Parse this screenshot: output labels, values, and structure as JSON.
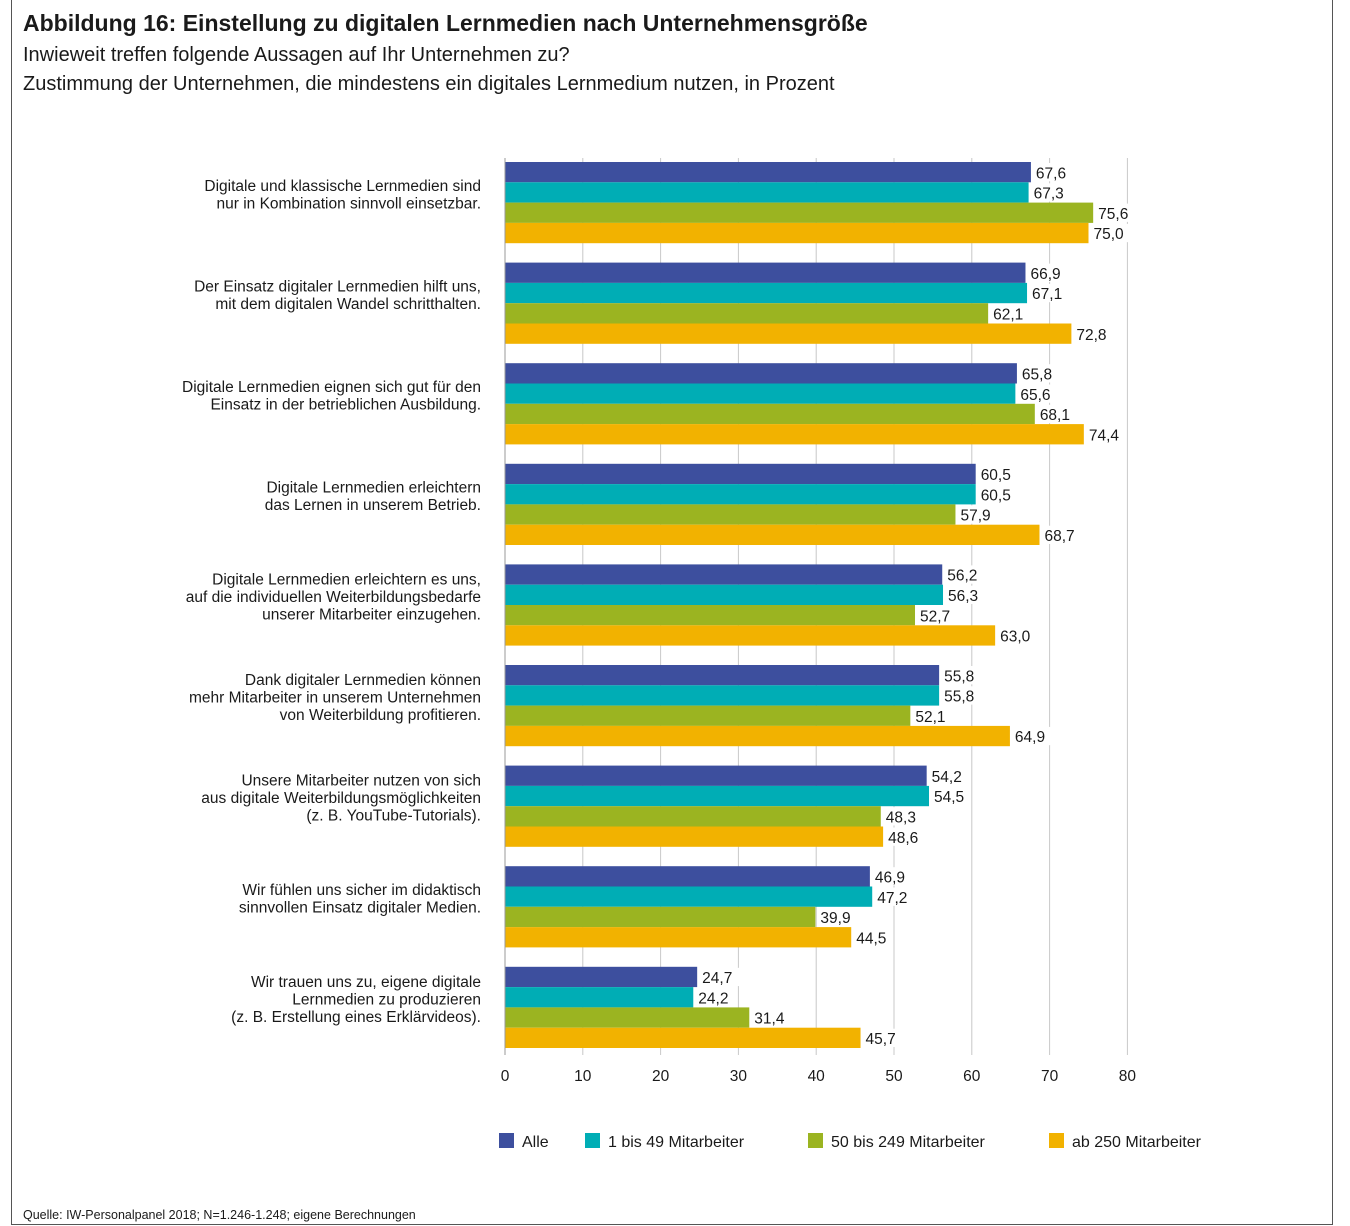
{
  "figure": {
    "title": "Abbildung 16: Einstellung zu digitalen Lernmedien nach Unternehmensgröße",
    "subtitle_1": "Inwieweit treffen folgende Aussagen auf Ihr Unternehmen zu?",
    "subtitle_2": "Zustimmung der Unternehmen, die mindestens ein digitales Lernmedium nutzen, in Prozent",
    "source": "Quelle: IW-Personalpanel 2018; N=1.246-1.248; eigene Berechnungen"
  },
  "chart_data": {
    "type": "bar",
    "orientation": "horizontal",
    "title": "Abbildung 16: Einstellung zu digitalen Lernmedien nach Unternehmensgröße",
    "xlim": [
      0,
      80
    ],
    "xticks": [
      0,
      10,
      20,
      30,
      40,
      50,
      60,
      70,
      80
    ],
    "grid": true,
    "legend": "bottom",
    "categories": [
      [
        "Digitale und klassische Lernmedien sind",
        "nur in Kombination sinnvoll einsetzbar."
      ],
      [
        "Der Einsatz digitaler Lernmedien hilft uns,",
        "mit dem digitalen Wandel schritthalten."
      ],
      [
        "Digitale Lernmedien eignen sich gut für den",
        "Einsatz in der betrieblichen Ausbildung."
      ],
      [
        "Digitale Lernmedien erleichtern",
        "das Lernen in unserem Betrieb."
      ],
      [
        "Digitale Lernmedien erleichtern es uns,",
        "auf die individuellen Weiterbildungsbedarfe",
        "unserer Mitarbeiter einzugehen."
      ],
      [
        "Dank digitaler Lernmedien können",
        "mehr Mitarbeiter in unserem Unternehmen",
        "von Weiterbildung profitieren."
      ],
      [
        "Unsere Mitarbeiter nutzen von sich",
        "aus digitale Weiterbildungsmöglichkeiten",
        "(z. B. YouTube-Tutorials)."
      ],
      [
        "Wir fühlen uns sicher im didaktisch",
        "sinnvollen Einsatz digitaler Medien."
      ],
      [
        "Wir trauen uns zu, eigene digitale",
        "Lernmedien zu produzieren",
        "(z. B. Erstellung eines Erklärvideos)."
      ]
    ],
    "series": [
      {
        "name": "Alle",
        "color": "#3d4f9e",
        "values": [
          67.6,
          66.9,
          65.8,
          60.5,
          56.2,
          55.8,
          54.2,
          46.9,
          24.7
        ],
        "labels": [
          "67,6",
          "66,9",
          "65,8",
          "60,5",
          "56,2",
          "55,8",
          "54,2",
          "46,9",
          "24,7"
        ]
      },
      {
        "name": "1 bis 49 Mitarbeiter",
        "color": "#00adb5",
        "values": [
          67.3,
          67.1,
          65.6,
          60.5,
          56.3,
          55.8,
          54.5,
          47.2,
          24.2
        ],
        "labels": [
          "67,3",
          "67,1",
          "65,6",
          "60,5",
          "56,3",
          "55,8",
          "54,5",
          "47,2",
          "24,2"
        ]
      },
      {
        "name": "50 bis 249 Mitarbeiter",
        "color": "#9bb421",
        "values": [
          75.6,
          62.1,
          68.1,
          57.9,
          52.7,
          52.1,
          48.3,
          39.9,
          31.4
        ],
        "labels": [
          "75,6",
          "62,1",
          "68,1",
          "57,9",
          "52,7",
          "52,1",
          "48,3",
          "39,9",
          "31,4"
        ]
      },
      {
        "name": "ab 250 Mitarbeiter",
        "color": "#f2b200",
        "values": [
          75.0,
          72.8,
          74.4,
          68.7,
          63.0,
          64.9,
          48.6,
          44.5,
          45.7
        ],
        "labels": [
          "75,0",
          "72,8",
          "74,4",
          "68,7",
          "63,0",
          "64,9",
          "48,6",
          "44,5",
          "45,7"
        ]
      }
    ]
  }
}
